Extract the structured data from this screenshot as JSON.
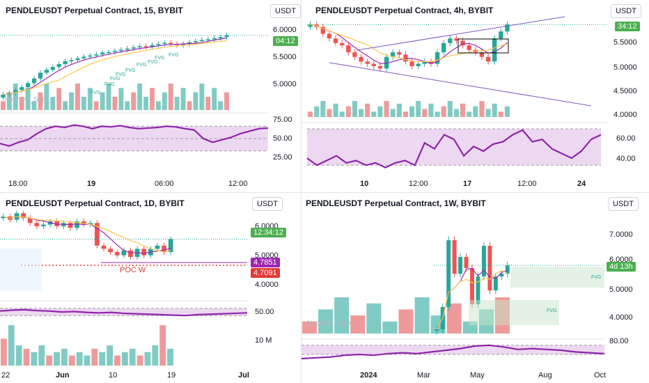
{
  "panels": [
    {
      "title": "PENDLEUSDT Perpetual Contract, 15, BYBIT",
      "currency_button": "USDT",
      "price_axis": [
        "6.0000",
        "5.5000",
        "5.0000"
      ],
      "price_tags": [
        {
          "text": "04:12",
          "color": "#4caf50"
        }
      ],
      "rsi_axis": [
        "75.00",
        "50.00",
        "25.00"
      ],
      "time_axis": [
        "18:00",
        "19",
        "06:00",
        "12:00"
      ],
      "fvg_labels": [
        "FVG",
        "FVG",
        "FVG",
        "FVG",
        "FVG",
        "FVG",
        "FVG",
        "FVG",
        "FVG"
      ],
      "watermark": "Nephew_Sam_"
    },
    {
      "title": "PENDLEUSDT Perpetual Contract, 4h, BYBIT",
      "currency_button": "USDT",
      "price_axis": [
        "5.5000",
        "5.0000",
        "4.5000",
        "4.0000"
      ],
      "price_tags": [
        {
          "text": "34:12",
          "color": "#4caf50"
        }
      ],
      "rsi_axis": [
        "60.00",
        "40.00"
      ],
      "time_axis": [
        "10",
        "12:00",
        "17",
        "12:00",
        "24"
      ]
    },
    {
      "title": "PENDLEUSDT Perpetual Contract, 1D, BYBIT",
      "currency_button": "USDT",
      "price_axis": [
        "6.0000",
        "5.0000",
        "4.0000"
      ],
      "price_tags": [
        {
          "text": "12:34:12",
          "color": "#4caf50"
        },
        {
          "text": "4.7851",
          "color": "#9c27b0"
        },
        {
          "text": "4.7091",
          "color": "#e53935"
        }
      ],
      "rsi_axis": [
        "50.00"
      ],
      "volume_axis": [
        "10 M"
      ],
      "time_axis": [
        "22",
        "Jun",
        "10",
        "19",
        "Jul"
      ],
      "poc_label": "POC W"
    },
    {
      "title": "PENDLEUSDT Perpetual Contract, 1W, BYBIT",
      "currency_button": "USDT",
      "price_axis": [
        "7.0000",
        "6.0000",
        "5.0000",
        "4.0000"
      ],
      "price_tags": [
        {
          "text": "4d 13h",
          "color": "#4caf50"
        }
      ],
      "rsi_axis": [
        "80.00"
      ],
      "time_axis": [
        "2024",
        "Mar",
        "May",
        "Aug",
        "Oct"
      ],
      "fvg_labels": [
        "FVG",
        "FVG"
      ],
      "watermark": "Nephew_Sam_"
    }
  ],
  "chart_data": [
    {
      "type": "candlestick",
      "title": "PENDLEUSDT Perpetual Contract, 15, BYBIT",
      "ylim": [
        4.75,
        6.2
      ],
      "yticks": [
        6.0,
        5.5,
        5.0
      ],
      "series": [
        {
          "name": "price",
          "close": [
            4.92,
            4.95,
            5.0,
            5.05,
            5.12,
            5.2,
            5.3,
            5.35,
            5.4,
            5.45,
            5.5,
            5.52,
            5.55,
            5.58,
            5.6,
            5.62,
            5.65,
            5.66,
            5.68,
            5.7,
            5.72,
            5.74,
            5.76,
            5.75,
            5.78,
            5.8,
            5.82,
            5.8,
            5.78,
            5.8,
            5.83,
            5.85,
            5.87,
            5.88,
            5.9,
            5.92,
            5.95
          ]
        }
      ],
      "rsi": {
        "ylim": [
          15,
          85
        ],
        "bands": [
          70,
          50,
          30
        ],
        "values": [
          42,
          38,
          44,
          48,
          58,
          66,
          70,
          68,
          72,
          70,
          66,
          70,
          69,
          71,
          68,
          66,
          67,
          68,
          70,
          69,
          66,
          64,
          50,
          44,
          48,
          52,
          58,
          62,
          66,
          67
        ]
      }
    },
    {
      "type": "candlestick",
      "title": "PENDLEUSDT Perpetual Contract, 4h, BYBIT",
      "ylim": [
        3.9,
        6.1
      ],
      "yticks": [
        5.5,
        5.0,
        4.5,
        4.0
      ],
      "series": [
        {
          "name": "price",
          "close": [
            5.9,
            5.85,
            5.7,
            5.6,
            5.5,
            5.45,
            5.3,
            5.2,
            5.1,
            5.05,
            5.0,
            4.95,
            5.2,
            5.3,
            5.25,
            5.1,
            5.0,
            5.05,
            5.1,
            5.05,
            5.3,
            5.5,
            5.6,
            5.55,
            5.45,
            5.35,
            5.3,
            5.2,
            5.1,
            5.6,
            5.75,
            5.9
          ]
        }
      ],
      "rsi": {
        "ylim": [
          32,
          70
        ],
        "bands": [
          67,
          36
        ],
        "values": [
          42,
          36,
          40,
          44,
          38,
          40,
          36,
          38,
          34,
          38,
          40,
          36,
          55,
          50,
          62,
          58,
          44,
          52,
          48,
          54,
          56,
          62,
          66,
          56,
          58,
          50,
          46,
          42,
          48,
          58,
          62
        ]
      }
    },
    {
      "type": "candlestick",
      "title": "PENDLEUSDT Perpetual Contract, 1D, BYBIT",
      "ylim": [
        3.6,
        6.4
      ],
      "yticks": [
        6.0,
        5.0,
        4.0
      ],
      "series": [
        {
          "name": "price",
          "close": [
            6.1,
            6.0,
            6.2,
            6.05,
            5.9,
            5.8,
            5.85,
            5.95,
            5.8,
            5.9,
            5.75,
            5.95,
            5.85,
            5.9,
            5.2,
            5.1,
            5.0,
            4.9,
            5.05,
            4.85,
            5.1,
            4.9,
            5.1,
            5.2,
            5.0,
            5.4
          ]
        }
      ],
      "rsi": {
        "ylim": [
          30,
          70
        ],
        "bands": [
          58,
          42
        ],
        "values": [
          52,
          54,
          55,
          53,
          52,
          50,
          51,
          49,
          48,
          49,
          47,
          46,
          45,
          44,
          43,
          42,
          44,
          45,
          46,
          47,
          48
        ]
      },
      "volume": [
        8,
        12,
        6,
        5,
        4,
        6,
        3,
        4,
        5,
        3,
        4,
        3,
        5,
        4,
        6,
        3,
        4,
        5,
        3,
        4,
        6,
        12,
        5
      ]
    },
    {
      "type": "candlestick",
      "title": "PENDLEUSDT Perpetual Contract, 1W, BYBIT",
      "ylim": [
        3.5,
        8.0
      ],
      "yticks": [
        7.0,
        6.0,
        5.0,
        4.0
      ],
      "series": [
        {
          "name": "price",
          "close": [
            3.6,
            4.4,
            6.8,
            5.6,
            6.2,
            5.8,
            4.5,
            5.5,
            6.6,
            5.0,
            5.5,
            5.6,
            5.9
          ]
        }
      ],
      "rsi": {
        "ylim": [
          40,
          90
        ],
        "bands": [
          82,
          60
        ],
        "values": [
          50,
          52,
          54,
          58,
          60,
          58,
          62,
          64,
          62,
          66,
          70,
          74,
          80,
          82,
          78,
          72,
          74,
          72,
          70,
          66,
          64,
          62
        ]
      }
    }
  ]
}
